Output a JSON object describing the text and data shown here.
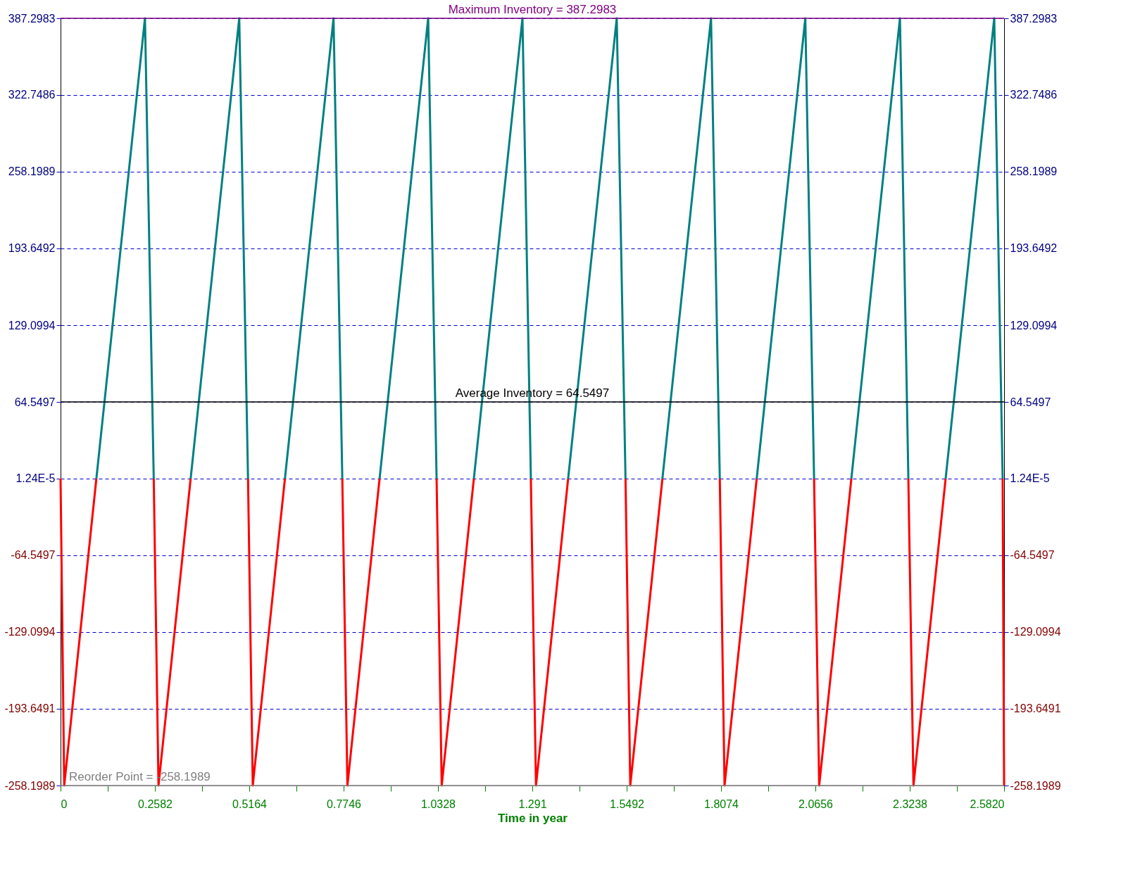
{
  "chart_data": {
    "type": "line",
    "xlabel": "Time in year",
    "xlim": [
      0,
      2.582
    ],
    "xticks": [
      0,
      {
        "value": 0.1291,
        "label": null
      },
      0.2582,
      {
        "value": 0.3873,
        "label": null
      },
      0.5164,
      {
        "value": 0.6455,
        "label": null
      },
      0.7746,
      {
        "value": 0.9037,
        "label": null
      },
      1.0328,
      {
        "value": 1.1619,
        "label": null
      },
      1.291,
      {
        "value": 1.4201,
        "label": null
      },
      1.5492,
      {
        "value": 1.6783,
        "label": null
      },
      1.8074,
      {
        "value": 1.9365,
        "label": null
      },
      2.0656,
      {
        "value": 2.1947,
        "label": null
      },
      2.3238,
      {
        "value": 2.4529,
        "label": null
      },
      {
        "value": 2.582,
        "label": "2.5820"
      }
    ],
    "ylim": [
      -258.1989,
      387.2983
    ],
    "yticks": [
      -258.1989,
      -193.6491,
      -129.0994,
      -64.5497,
      {
        "value": 1.24e-05,
        "label": "1.24E-5"
      },
      64.5497,
      129.0994,
      193.6492,
      258.1989,
      322.7486,
      387.2983
    ],
    "y2lim": [
      -258.1989,
      387.2983
    ],
    "y2ticks": [
      -258.1989,
      -193.6491,
      -129.0994,
      -64.5497,
      {
        "value": 1.24e-05,
        "label": "1.24E-5"
      },
      64.5497,
      129.0994,
      193.6492,
      258.1989,
      322.7486,
      387.2983
    ],
    "grid": "y",
    "legend": false,
    "marker": "none",
    "line_style": "solid",
    "series": [
      {
        "color": "#008080",
        "x": [
          0.098,
          0.231,
          0.255,
          null,
          0.356,
          0.489,
          0.513,
          null,
          0.614,
          0.747,
          0.771,
          null,
          0.873,
          1.006,
          1.029,
          null,
          1.131,
          1.264,
          1.287,
          null,
          1.389,
          1.522,
          1.546,
          null,
          1.647,
          1.78,
          1.804,
          null,
          1.905,
          2.038,
          2.062,
          null,
          2.164,
          2.297,
          2.32,
          null,
          2.422,
          2.555,
          2.578
        ],
        "values": [
          0,
          387.2983,
          0,
          null,
          0,
          387.2983,
          0,
          null,
          0,
          387.2983,
          0,
          null,
          0,
          387.2983,
          0,
          null,
          0,
          387.2983,
          0,
          null,
          0,
          387.2983,
          0,
          null,
          0,
          387.2983,
          0,
          null,
          0,
          387.2983,
          0,
          null,
          0,
          387.2983,
          0,
          null,
          0,
          387.2983,
          0
        ]
      },
      {
        "color": "#ff0000",
        "x": [
          0,
          0.01,
          0.098,
          null,
          0.255,
          0.268,
          0.356,
          null,
          0.513,
          0.526,
          0.614,
          null,
          0.771,
          0.785,
          0.873,
          null,
          1.029,
          1.043,
          1.131,
          null,
          1.287,
          1.301,
          1.389,
          null,
          1.546,
          1.559,
          1.647,
          null,
          1.804,
          1.817,
          1.905,
          null,
          2.062,
          2.076,
          2.164,
          null,
          2.32,
          2.334,
          2.422,
          null,
          2.578,
          2.582
        ],
        "values": [
          0,
          -258.1989,
          0,
          null,
          0,
          -258.1989,
          0,
          null,
          0,
          -258.1989,
          0,
          null,
          0,
          -258.1989,
          0,
          null,
          0,
          -258.1989,
          0,
          null,
          0,
          -258.1989,
          0,
          null,
          0,
          -258.1989,
          0,
          null,
          0,
          -258.1989,
          0,
          null,
          0,
          -258.1989,
          0,
          null,
          0,
          -258.1989,
          0,
          null,
          0,
          -258.1989
        ]
      }
    ],
    "ref_lines": [
      {
        "axis": "y",
        "value": 387.2983,
        "label": "Maximum Inventory = 387.2983",
        "color": "#800080"
      },
      {
        "axis": "y",
        "value": 64.5497,
        "label": "Average Inventory = 64.5497",
        "color": "#000000"
      },
      {
        "axis": "y",
        "value": -258.1989,
        "label": "Reorder Point = -258.1989",
        "color": "#808080"
      }
    ]
  }
}
